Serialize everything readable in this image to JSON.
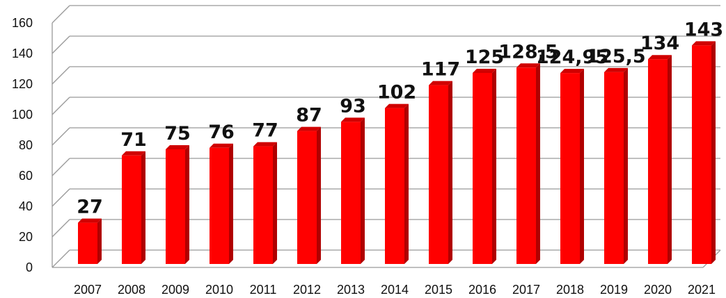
{
  "chart_data": {
    "type": "bar",
    "categories": [
      "2007",
      "2008",
      "2009",
      "2010",
      "2011",
      "2012",
      "2013",
      "2014",
      "2015",
      "2016",
      "2017",
      "2018",
      "2019",
      "2020",
      "2021"
    ],
    "values": [
      27,
      71,
      75,
      76,
      77,
      87,
      93,
      102,
      117,
      125,
      128.5,
      124.95,
      125.5,
      134,
      143
    ],
    "data_labels": [
      "27",
      "71",
      "75",
      "76",
      "77",
      "87",
      "93",
      "102",
      "117",
      "125",
      "128,5",
      "124,95",
      "125,5",
      "134",
      "143"
    ],
    "y_ticks": [
      "0",
      "20",
      "40",
      "60",
      "80",
      "100",
      "120",
      "140",
      "160"
    ],
    "ylim": [
      0,
      160
    ],
    "title": "",
    "xlabel": "",
    "ylabel": "",
    "grid": true,
    "legend": "none",
    "bar_color": "#ff0000",
    "bar_side_color": "#b00000",
    "bar_top_color": "#d00000",
    "grid_color": "#999999"
  }
}
